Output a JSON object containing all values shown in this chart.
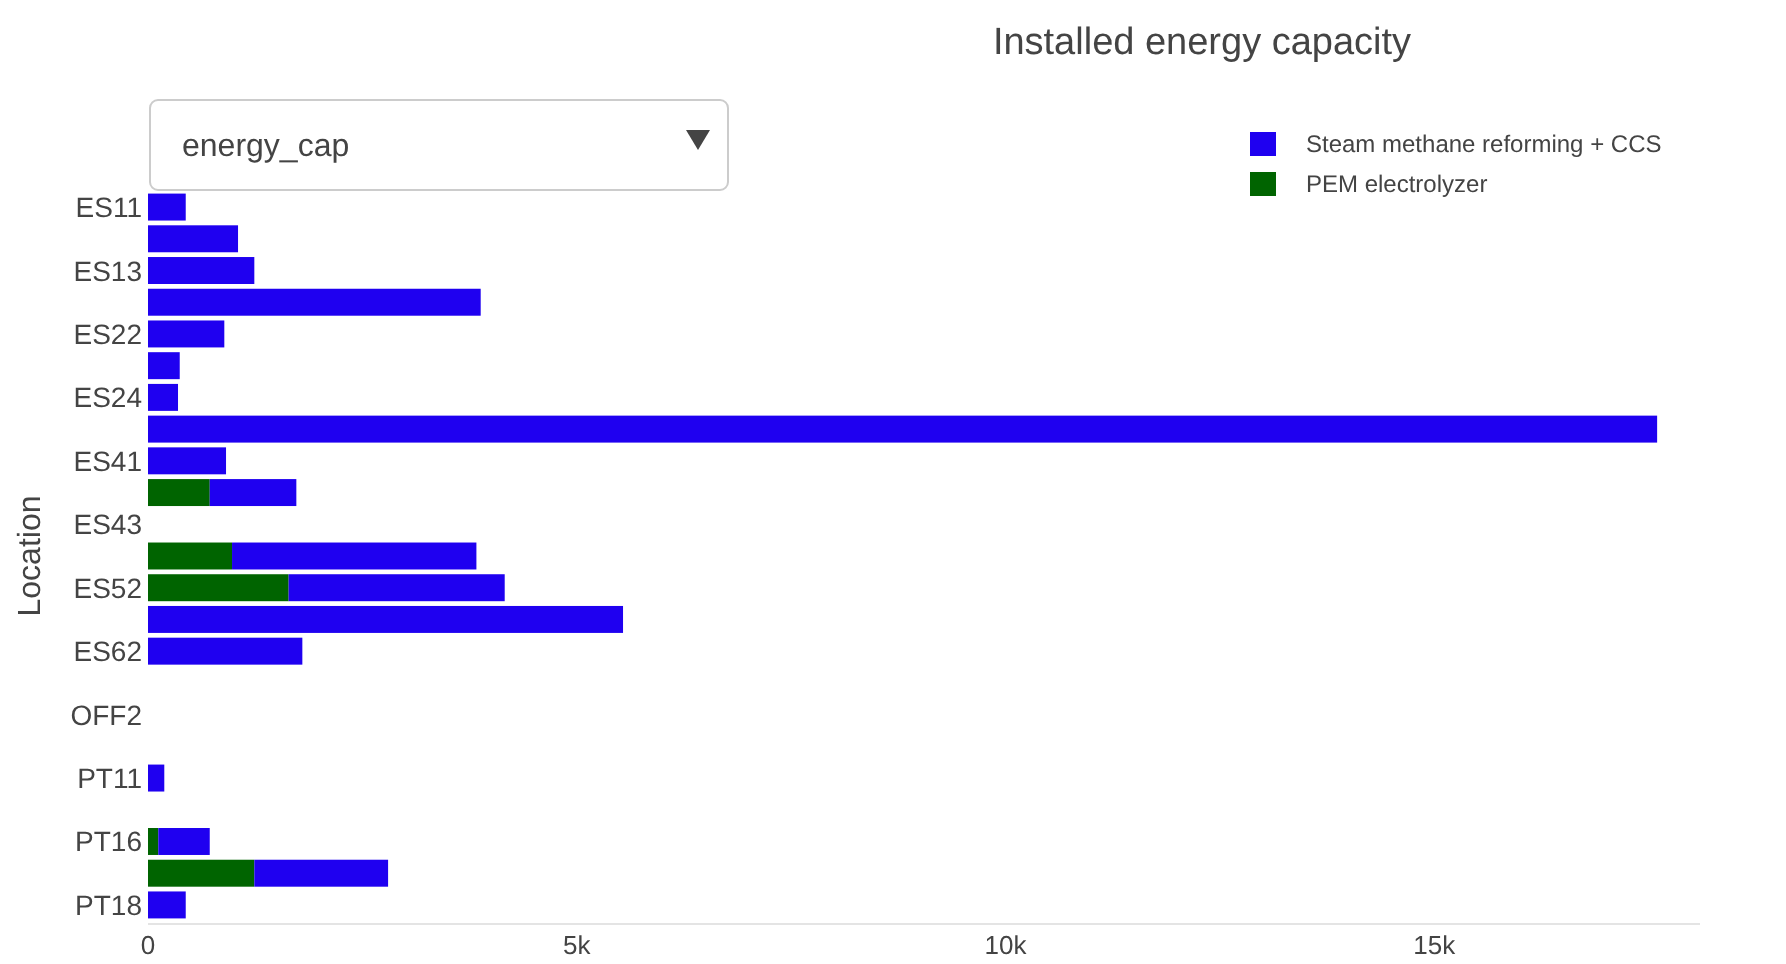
{
  "chart_data": {
    "type": "bar",
    "orientation": "horizontal",
    "stacked": true,
    "title": "Installed energy capacity",
    "ylabel": "Location",
    "categories": [
      "ES11",
      null,
      "ES13",
      null,
      "ES22",
      null,
      "ES24",
      null,
      "ES41",
      null,
      "ES43",
      null,
      "ES52",
      null,
      "ES62",
      null,
      "OFF2",
      null,
      "PT11",
      null,
      "PT16",
      null,
      "PT18"
    ],
    "series": [
      {
        "name": "PEM electrolyzer",
        "color": "#006400",
        "values": [
          null,
          null,
          null,
          null,
          null,
          null,
          null,
          null,
          null,
          720,
          null,
          980,
          1640,
          null,
          null,
          null,
          null,
          null,
          null,
          null,
          120,
          1240,
          null
        ]
      },
      {
        "name": "Steam methane reforming + CCS",
        "color": "#1f00f0",
        "values": [
          440,
          1050,
          1240,
          3880,
          890,
          370,
          350,
          17600,
          910,
          1010,
          null,
          2850,
          2520,
          5540,
          1800,
          null,
          null,
          null,
          190,
          null,
          600,
          1560,
          440
        ]
      }
    ],
    "xlim": [
      0,
      18100
    ],
    "xticks": [
      0,
      {
        "value": 5000,
        "label": "5k"
      },
      {
        "value": 10000,
        "label": "10k"
      },
      {
        "value": 15000,
        "label": "15k"
      }
    ],
    "legend": "top right",
    "annotations": [
      "energy_cap"
    ]
  }
}
